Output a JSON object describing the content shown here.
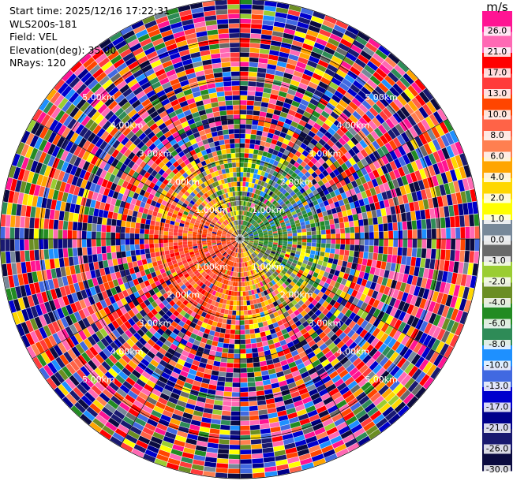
{
  "info": {
    "start_time": "Start time: 2025/12/16 17:22:31",
    "site": "WLS200s-181",
    "field": "Field: VEL",
    "elevation": "Elevation(deg): 35.00",
    "nrays": "NRays: 120"
  },
  "chart_data": {
    "type": "ppi",
    "field": "VEL",
    "units": "m/s",
    "elevation_deg": 35.0,
    "n_rays": 120,
    "max_range_km": 6.0,
    "range_ring_labels": [
      "1.00km",
      "2.00km",
      "3.00km",
      "4.00km",
      "5.00km"
    ],
    "colorbar": {
      "units": "m/s",
      "ticks": [
        "26.0",
        "21.0",
        "17.0",
        "13.0",
        "10.0",
        "8.0",
        "6.0",
        "4.0",
        "2.0",
        "1.0",
        "0.0",
        "-1.0",
        "-2.0",
        "-4.0",
        "-6.0",
        "-8.0",
        "-10.0",
        "-13.0",
        "-17.0",
        "-21.0",
        "-26.0",
        "-30.0"
      ],
      "colors": [
        "#ff1493",
        "#ff69b4",
        "#ff0000",
        "#ff3b3b",
        "#ff4500",
        "#ff6347",
        "#ff7f50",
        "#ffa500",
        "#ffd700",
        "#ffff00",
        "#778899",
        "#696969",
        "#9acd32",
        "#6b8e23",
        "#228b22",
        "#2e8b57",
        "#1e90ff",
        "#4169e1",
        "#0000cd",
        "#00008b",
        "#191970",
        "#0b0b40"
      ]
    }
  }
}
